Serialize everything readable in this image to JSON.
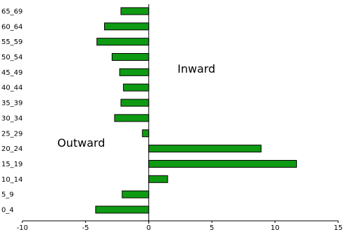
{
  "chart_data": {
    "type": "bar",
    "orientation": "horizontal",
    "title": "",
    "xlabel": "",
    "ylabel": "",
    "categories": [
      "0_4",
      "5_9",
      "10_14",
      "15_19",
      "20_24",
      "25_29",
      "30_34",
      "35_39",
      "40_44",
      "45_49",
      "50_54",
      "55_59",
      "60_64",
      "65_69"
    ],
    "values": [
      -4.2,
      -2.1,
      1.5,
      11.7,
      8.9,
      -0.5,
      -2.7,
      -2.2,
      -2.0,
      -2.3,
      -2.9,
      -4.1,
      -3.5,
      -2.2
    ],
    "xlim": [
      -10,
      15
    ],
    "xticks": [
      "-10",
      "-5",
      "0",
      "5",
      "10",
      "15"
    ],
    "grid": false,
    "legend": "none",
    "bar_color": "#0f9a14",
    "annotations": {
      "inward": "Inward",
      "outward": "Outward"
    }
  }
}
